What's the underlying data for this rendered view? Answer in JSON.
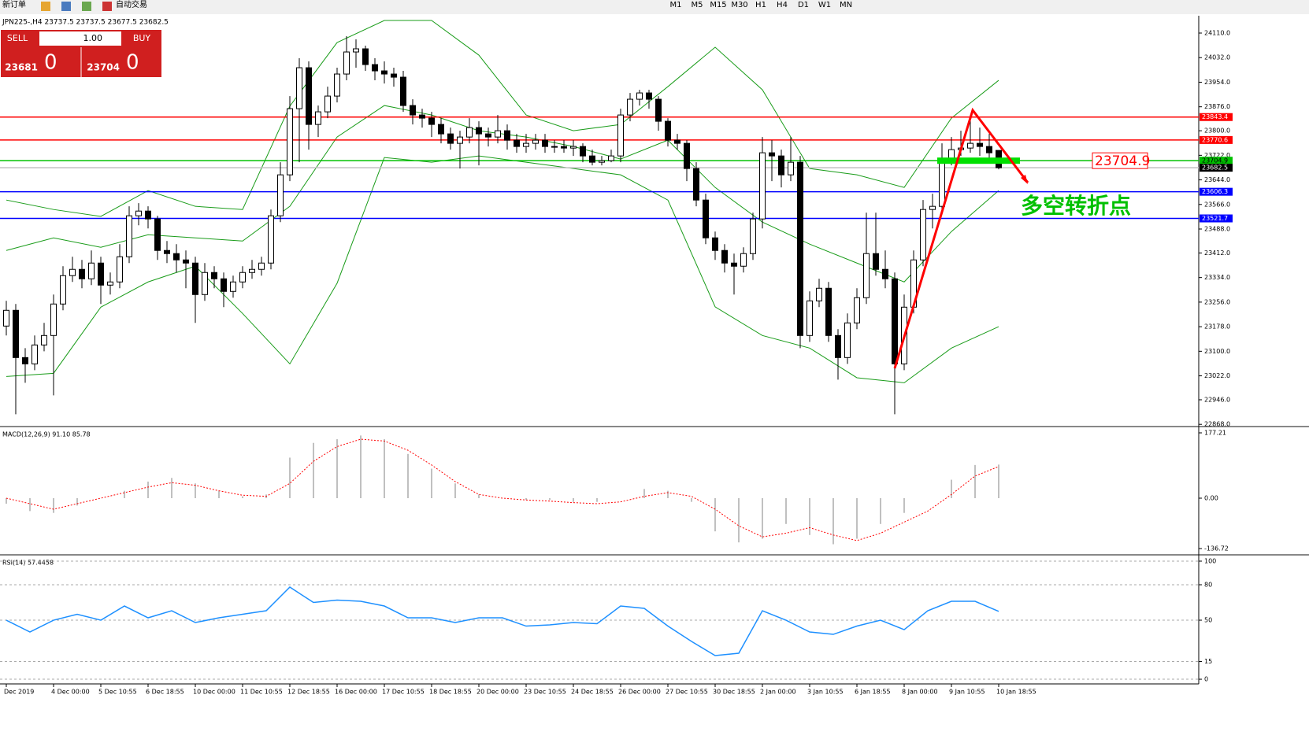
{
  "toolbar": {
    "new_order": "新订单",
    "auto_trading": "自动交易",
    "timeframes": [
      "M1",
      "M5",
      "M15",
      "M30",
      "H1",
      "H4",
      "D1",
      "W1",
      "MN"
    ]
  },
  "trade_panel": {
    "sell": "SELL",
    "lot": "1.00",
    "buy": "BUY",
    "sell_price": 23681,
    "sell_point": 0,
    "buy_price": 23704,
    "buy_point": 0
  },
  "chart_data": [
    {
      "type": "candlestick",
      "title": "JPN225-,H4 23737.5 23737.5 23677.5 23682.5",
      "annotation": "多空转折点",
      "categories": [
        "Dec 2019",
        null,
        null,
        null,
        null,
        "4 Dec 00:00",
        null,
        null,
        null,
        null,
        "5 Dec 10:55",
        null,
        null,
        null,
        null,
        "6 Dec 18:55",
        null,
        null,
        null,
        null,
        "10 Dec 00:00",
        null,
        null,
        null,
        null,
        "11 Dec 10:55",
        null,
        null,
        null,
        null,
        "12 Dec 18:55",
        null,
        null,
        null,
        null,
        "16 Dec 00:00",
        null,
        null,
        null,
        null,
        "17 Dec 10:55",
        null,
        null,
        null,
        null,
        "18 Dec 18:55",
        null,
        null,
        null,
        null,
        "20 Dec 00:00",
        null,
        null,
        null,
        null,
        "23 Dec 10:55",
        null,
        null,
        null,
        null,
        "24 Dec 18:55",
        null,
        null,
        null,
        null,
        "26 Dec 00:00",
        null,
        null,
        null,
        null,
        "27 Dec 10:55",
        null,
        null,
        null,
        null,
        "30 Dec 18:55",
        null,
        null,
        null,
        null,
        "2 Jan 00:00",
        null,
        null,
        null,
        null,
        "3 Jan 10:55",
        null,
        null,
        null,
        null,
        "6 Jan 18:55",
        null,
        null,
        null,
        null,
        "8 Jan 00:00",
        null,
        null,
        null,
        null,
        "9 Jan 10:55",
        null,
        null,
        null,
        null,
        "10 Jan 18:55"
      ],
      "ohlc": [
        [
          23180,
          23260,
          23150,
          23230
        ],
        [
          23230,
          23250,
          22900,
          23080
        ],
        [
          23080,
          23110,
          23000,
          23060
        ],
        [
          23060,
          23150,
          23040,
          23120
        ],
        [
          23120,
          23190,
          23100,
          23150
        ],
        [
          23150,
          23280,
          22960,
          23250
        ],
        [
          23250,
          23370,
          23230,
          23340
        ],
        [
          23340,
          23400,
          23320,
          23360
        ],
        [
          23360,
          23390,
          23300,
          23330
        ],
        [
          23330,
          23420,
          23310,
          23380
        ],
        [
          23380,
          23400,
          23250,
          23310
        ],
        [
          23310,
          23350,
          23280,
          23320
        ],
        [
          23320,
          23440,
          23300,
          23400
        ],
        [
          23400,
          23560,
          23380,
          23530
        ],
        [
          23530,
          23570,
          23500,
          23545
        ],
        [
          23545,
          23560,
          23490,
          23520
        ],
        [
          23520,
          23530,
          23390,
          23420
        ],
        [
          23420,
          23450,
          23380,
          23410
        ],
        [
          23410,
          23440,
          23350,
          23390
        ],
        [
          23390,
          23420,
          23300,
          23380
        ],
        [
          23380,
          23400,
          23190,
          23280
        ],
        [
          23280,
          23380,
          23260,
          23350
        ],
        [
          23350,
          23370,
          23300,
          23330
        ],
        [
          23330,
          23350,
          23240,
          23290
        ],
        [
          23290,
          23340,
          23270,
          23320
        ],
        [
          23320,
          23370,
          23300,
          23350
        ],
        [
          23350,
          23390,
          23330,
          23360
        ],
        [
          23360,
          23400,
          23340,
          23380
        ],
        [
          23380,
          23550,
          23360,
          23530
        ],
        [
          23530,
          23700,
          23510,
          23660
        ],
        [
          23660,
          23910,
          23640,
          23870
        ],
        [
          23870,
          24030,
          23700,
          24000
        ],
        [
          24000,
          24020,
          23740,
          23820
        ],
        [
          23820,
          23880,
          23780,
          23860
        ],
        [
          23860,
          23940,
          23840,
          23910
        ],
        [
          23910,
          24000,
          23890,
          23980
        ],
        [
          23980,
          24100,
          23960,
          24050
        ],
        [
          24050,
          24090,
          24000,
          24060
        ],
        [
          24060,
          24070,
          23990,
          24010
        ],
        [
          24010,
          24030,
          23960,
          23990
        ],
        [
          23990,
          24020,
          23950,
          23980
        ],
        [
          23980,
          24000,
          23940,
          23970
        ],
        [
          23970,
          23990,
          23860,
          23880
        ],
        [
          23880,
          23900,
          23820,
          23850
        ],
        [
          23850,
          23870,
          23810,
          23840
        ],
        [
          23840,
          23860,
          23780,
          23820
        ],
        [
          23820,
          23840,
          23760,
          23790
        ],
        [
          23790,
          23810,
          23740,
          23760
        ],
        [
          23760,
          23800,
          23680,
          23780
        ],
        [
          23780,
          23840,
          23760,
          23810
        ],
        [
          23810,
          23830,
          23690,
          23790
        ],
        [
          23790,
          23810,
          23750,
          23780
        ],
        [
          23780,
          23850,
          23760,
          23800
        ],
        [
          23800,
          23820,
          23740,
          23770
        ],
        [
          23770,
          23790,
          23730,
          23750
        ],
        [
          23750,
          23790,
          23730,
          23760
        ],
        [
          23760,
          23790,
          23740,
          23770
        ],
        [
          23770,
          23790,
          23730,
          23750
        ],
        [
          23750,
          23770,
          23730,
          23750
        ],
        [
          23750,
          23770,
          23730,
          23745
        ],
        [
          23745,
          23770,
          23720,
          23750
        ],
        [
          23750,
          23760,
          23700,
          23720
        ],
        [
          23720,
          23740,
          23690,
          23700
        ],
        [
          23700,
          23720,
          23690,
          23705
        ],
        [
          23705,
          23740,
          23700,
          23720
        ],
        [
          23720,
          23870,
          23700,
          23850
        ],
        [
          23850,
          23920,
          23830,
          23900
        ],
        [
          23900,
          23930,
          23880,
          23920
        ],
        [
          23920,
          23930,
          23870,
          23900
        ],
        [
          23900,
          23910,
          23800,
          23830
        ],
        [
          23830,
          23840,
          23750,
          23770
        ],
        [
          23770,
          23790,
          23740,
          23760
        ],
        [
          23760,
          23770,
          23640,
          23680
        ],
        [
          23680,
          23700,
          23560,
          23580
        ],
        [
          23580,
          23600,
          23440,
          23460
        ],
        [
          23460,
          23480,
          23390,
          23420
        ],
        [
          23420,
          23440,
          23350,
          23380
        ],
        [
          23380,
          23410,
          23280,
          23370
        ],
        [
          23370,
          23430,
          23350,
          23410
        ],
        [
          23410,
          23540,
          23390,
          23520
        ],
        [
          23520,
          23780,
          23490,
          23730
        ],
        [
          23730,
          23770,
          23640,
          23720
        ],
        [
          23720,
          23740,
          23620,
          23660
        ],
        [
          23660,
          23780,
          23640,
          23700
        ],
        [
          23700,
          23720,
          23110,
          23150
        ],
        [
          23150,
          23290,
          23130,
          23260
        ],
        [
          23260,
          23330,
          23240,
          23300
        ],
        [
          23300,
          23320,
          23130,
          23150
        ],
        [
          23150,
          23170,
          23010,
          23080
        ],
        [
          23080,
          23220,
          23060,
          23190
        ],
        [
          23190,
          23300,
          23170,
          23270
        ],
        [
          23270,
          23540,
          23250,
          23410
        ],
        [
          23410,
          23540,
          23340,
          23360
        ],
        [
          23360,
          23420,
          23300,
          23330
        ],
        [
          23330,
          23350,
          22900,
          23060
        ],
        [
          23060,
          23280,
          23040,
          23240
        ],
        [
          23240,
          23420,
          23220,
          23390
        ],
        [
          23390,
          23580,
          23370,
          23550
        ],
        [
          23550,
          23600,
          23490,
          23560
        ],
        [
          23560,
          23760,
          23540,
          23710
        ],
        [
          23710,
          23780,
          23690,
          23740
        ],
        [
          23740,
          23800,
          23720,
          23745
        ],
        [
          23745,
          23850,
          23730,
          23760
        ],
        [
          23760,
          23810,
          23720,
          23750
        ],
        [
          23750,
          23790,
          23700,
          23730
        ],
        [
          23737.5,
          23737.5,
          23677.5,
          23682.5
        ]
      ],
      "bands": {
        "color": "#1a9c1a",
        "upper": [
          23580,
          23550,
          23528,
          23610,
          23560,
          23550,
          23878,
          24080,
          24150,
          24150,
          24040,
          23850,
          23800,
          23820,
          23940,
          24065,
          23930,
          23680,
          23660,
          23620,
          23840,
          23960
        ],
        "middle": [
          23420,
          23460,
          23430,
          23470,
          23460,
          23450,
          23560,
          23780,
          23880,
          23850,
          23800,
          23780,
          23750,
          23710,
          23770,
          23620,
          23510,
          23440,
          23380,
          23320,
          23480,
          23610
        ],
        "lower": [
          23020,
          23030,
          23240,
          23320,
          23370,
          23220,
          23060,
          23316,
          23715,
          23700,
          23720,
          23700,
          23680,
          23660,
          23580,
          23241,
          23150,
          23110,
          23016,
          23000,
          23110,
          23178
        ]
      },
      "levels": [
        {
          "value": 23843.4,
          "color": "#ff0000"
        },
        {
          "value": 23770.6,
          "color": "#ff0000"
        },
        {
          "value": 23704.9,
          "color": "#00c000"
        },
        {
          "value": 23682.5,
          "color": "#c0c0c0"
        },
        {
          "value": 23606.3,
          "color": "#0000ff"
        },
        {
          "value": 23521.7,
          "color": "#0000ff"
        }
      ],
      "ylim": [
        22866,
        24160
      ],
      "yticks": [
        {
          "value": 24110,
          "label": "24110.0"
        },
        {
          "value": 24032,
          "label": "24032.0"
        },
        {
          "value": 23954,
          "label": "23954.0"
        },
        {
          "value": 23876,
          "label": "23876.0"
        },
        {
          "value": 23800,
          "label": "23800.0"
        },
        {
          "value": 23722,
          "label": "23722.0"
        },
        {
          "value": 23644,
          "label": "23644.0"
        },
        {
          "value": 23566,
          "label": "23566.0"
        },
        {
          "value": 23488,
          "label": "23488.0"
        },
        {
          "value": 23412,
          "label": "23412.0"
        },
        {
          "value": 23334,
          "label": "23334.0"
        },
        {
          "value": 23256,
          "label": "23256.0"
        },
        {
          "value": 23178,
          "label": "23178.0"
        },
        {
          "value": 23100,
          "label": "23100.0"
        },
        {
          "value": 23022,
          "label": "23022.0"
        },
        {
          "value": 22946,
          "label": "22946.0"
        },
        {
          "value": 22868,
          "label": "22868.0"
        }
      ]
    },
    {
      "type": "macd",
      "title": "MACD(12,26,9) 91.10 85.78",
      "color": "#c0c0c0",
      "signal_color": "#ff0000",
      "values": [
        -15,
        -35,
        -40,
        -20,
        0,
        20,
        45,
        55,
        40,
        20,
        5,
        10,
        110,
        150,
        160,
        170,
        160,
        120,
        80,
        40,
        10,
        0,
        -5,
        -5,
        -10,
        -10,
        0,
        25,
        20,
        -10,
        -90,
        -120,
        -110,
        -70,
        -100,
        -125,
        -110,
        -70,
        -40,
        0,
        50,
        90,
        91.1
      ],
      "signal": [
        0,
        -15,
        -30,
        -15,
        0,
        15,
        30,
        42,
        35,
        20,
        8,
        5,
        40,
        100,
        140,
        160,
        155,
        130,
        90,
        45,
        10,
        0,
        -5,
        -8,
        -12,
        -15,
        -10,
        5,
        15,
        5,
        -30,
        -75,
        -105,
        -95,
        -80,
        -100,
        -115,
        -95,
        -65,
        -35,
        10,
        60,
        85.78
      ],
      "ylim": [
        -149.5,
        187.9
      ],
      "yticks": [
        177.21,
        {
          "value": 0,
          "label": "0.00"
        },
        -136.72
      ]
    },
    {
      "type": "rsi",
      "title": "RSI(14) 57.4458",
      "color": "#1e90ff",
      "values": [
        50,
        40,
        50,
        55,
        50,
        62,
        52,
        58,
        48,
        52,
        55,
        58,
        78,
        65,
        67,
        66,
        62,
        52,
        52,
        48,
        52,
        52,
        45,
        46,
        48,
        47,
        62,
        60,
        45,
        32,
        20,
        22,
        58,
        50,
        40,
        38,
        45,
        50,
        42,
        58,
        66,
        66,
        57.4458
      ],
      "ylim": [
        -3.3,
        104
      ],
      "yticks": [
        100,
        80,
        50,
        15,
        0
      ]
    }
  ]
}
